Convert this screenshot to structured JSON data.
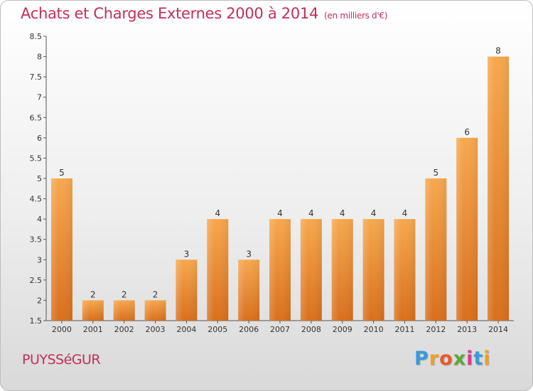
{
  "title": "Achats et Charges Externes 2000 à 2014",
  "unit": "(en milliers d'€)",
  "place": "PUYSSéGUR",
  "logo": {
    "text": "Proxiti",
    "letters": [
      "P",
      "r",
      "o",
      "x",
      "i",
      "t",
      "i"
    ]
  },
  "colors": {
    "title": "#c0305a",
    "bar_top": "#f7a84e",
    "bar_bottom": "#d8701d",
    "axis": "#555555"
  },
  "chart_data": {
    "type": "bar",
    "title": "Achats et Charges Externes 2000 à 2014",
    "xlabel": "",
    "ylabel": "",
    "categories": [
      "2000",
      "2001",
      "2002",
      "2003",
      "2004",
      "2005",
      "2006",
      "2007",
      "2008",
      "2009",
      "2010",
      "2011",
      "2012",
      "2013",
      "2014"
    ],
    "values": [
      5,
      2,
      2,
      2,
      3,
      4,
      3,
      4,
      4,
      4,
      4,
      4,
      5,
      6,
      8
    ],
    "data_labels": [
      "5",
      "2",
      "2",
      "2",
      "3",
      "4",
      "3",
      "4",
      "4",
      "4",
      "4",
      "4",
      "5",
      "6",
      "8"
    ],
    "ylim": [
      1.5,
      8.5
    ],
    "yticks": [
      "1.5",
      "2",
      "2.5",
      "3",
      "3.5",
      "4",
      "4.5",
      "5",
      "5.5",
      "6",
      "6.5",
      "7",
      "7.5",
      "8",
      "8.5"
    ],
    "grid": false,
    "legend": "none"
  }
}
